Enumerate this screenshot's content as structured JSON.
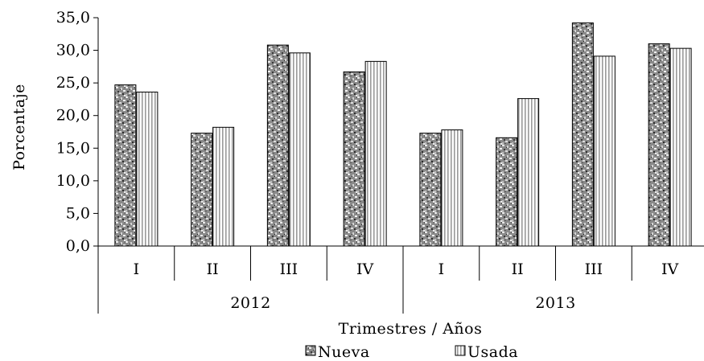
{
  "chart_data": {
    "type": "bar",
    "xlabel": "Trimestres / Años",
    "ylabel": "Porcentaje",
    "ylim": [
      0,
      35
    ],
    "ytick_step": 5,
    "ytick_labels": [
      "0,0",
      "5,0",
      "10,0",
      "15,0",
      "20,0",
      "25,0",
      "30,0",
      "35,0"
    ],
    "categories": [
      {
        "quarter": "I",
        "year": "2012"
      },
      {
        "quarter": "II",
        "year": "2012"
      },
      {
        "quarter": "III",
        "year": "2012"
      },
      {
        "quarter": "IV",
        "year": "2012"
      },
      {
        "quarter": "I",
        "year": "2013"
      },
      {
        "quarter": "II",
        "year": "2013"
      },
      {
        "quarter": "III",
        "year": "2013"
      },
      {
        "quarter": "IV",
        "year": "2013"
      }
    ],
    "years": [
      "2012",
      "2013"
    ],
    "series": [
      {
        "name": "Nueva",
        "values": [
          24.7,
          17.3,
          30.8,
          26.7,
          17.3,
          16.6,
          34.2,
          31.0
        ]
      },
      {
        "name": "Usada",
        "values": [
          23.6,
          18.2,
          29.6,
          28.3,
          17.8,
          22.6,
          29.1,
          30.3
        ]
      }
    ],
    "grid": false,
    "legend_position": "bottom"
  }
}
